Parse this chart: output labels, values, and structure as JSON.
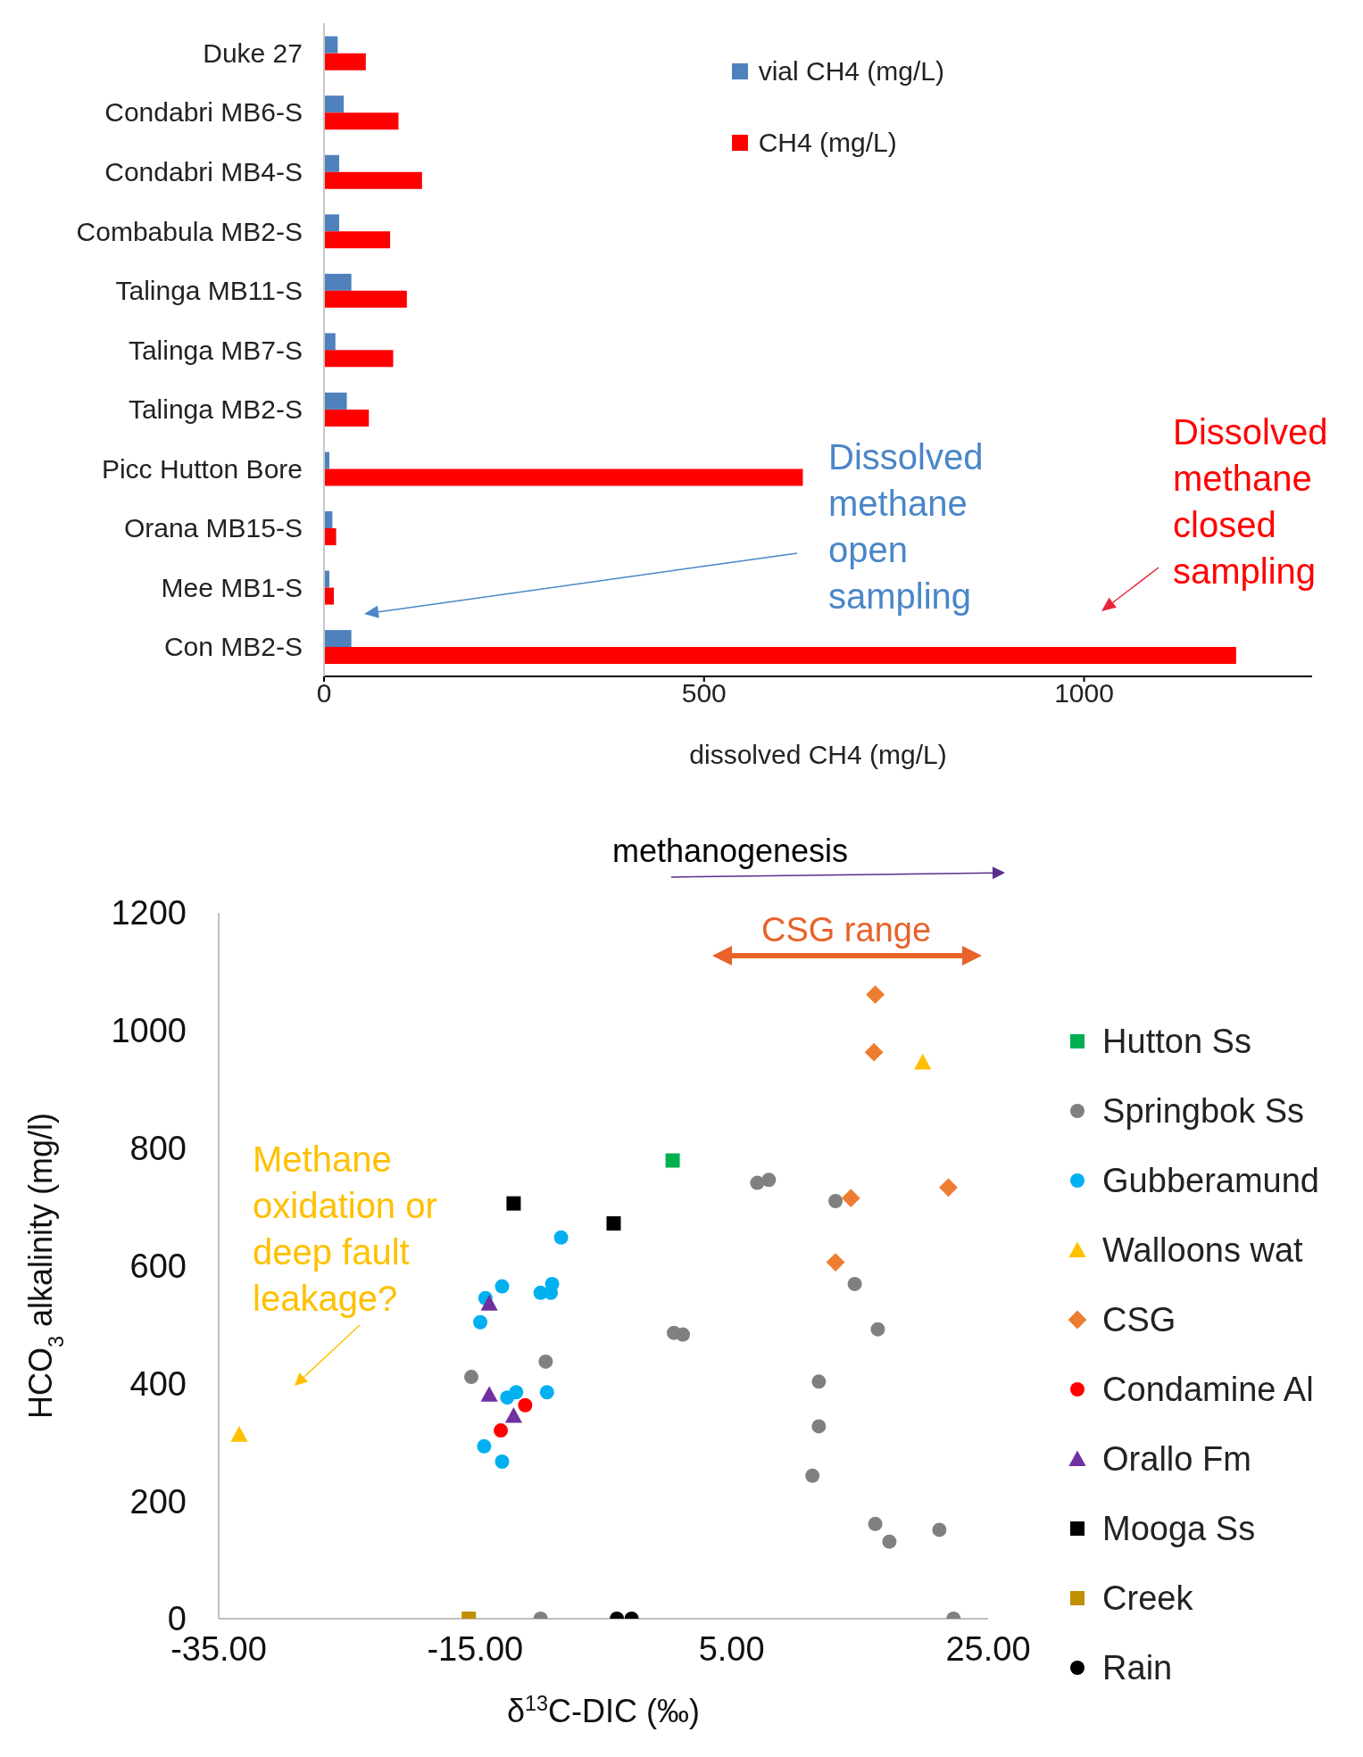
{
  "chart_data": [
    {
      "type": "bar",
      "orientation": "horizontal",
      "xlabel": "dissolved CH4 (mg/L)",
      "categories": [
        "Duke 27",
        "Condabri MB6-S",
        "Condabri MB4-S",
        "Combabula MB2-S",
        "Talinga MB11-S",
        "Talinga MB7-S",
        "Talinga MB2-S",
        "Picc Hutton Bore",
        "Orana MB15-S",
        "Mee MB1-S",
        "Con MB2-S"
      ],
      "series": [
        {
          "name": "vial CH4 (mg/L)",
          "color": "#4f81bd",
          "values": [
            18,
            26,
            20,
            20,
            36,
            15,
            30,
            7,
            11,
            7,
            36
          ]
        },
        {
          "name": "CH4 (mg/L)",
          "color": "#ff0000",
          "values": [
            55,
            98,
            129,
            87,
            109,
            91,
            59,
            630,
            16,
            13,
            1200
          ]
        }
      ],
      "xlim": [
        0,
        1300
      ],
      "xticks": [
        0,
        500,
        1000
      ],
      "legend": "top right",
      "annotations": [
        "Dissolved methane open sampling",
        "Dissolved methane closed sampling"
      ]
    },
    {
      "type": "scatter",
      "xlabel": "δ$^{13}$C-DIC (‰)",
      "ylabel": "HCO$_{3}$ alkalinity (mg/l)",
      "xlim": [
        -35,
        25
      ],
      "xticks": [
        {
          "value": -35,
          "label": "-35.00"
        },
        {
          "value": -15,
          "label": "-15.00"
        },
        {
          "value": 5,
          "label": "5.00"
        },
        {
          "value": 25,
          "label": "25.00"
        }
      ],
      "ylim": [
        0,
        1200
      ],
      "yticks": [
        0,
        200,
        400,
        600,
        800,
        1000,
        1200
      ],
      "legend": "right",
      "series": [
        {
          "name": "Hutton Ss",
          "color": "#00b050",
          "marker": "square",
          "x": [
            0.4
          ],
          "values": [
            779
          ]
        },
        {
          "name": "Springbok Ss",
          "color": "#808080",
          "marker": "circle",
          "x": [
            -15.3,
            -9.5,
            -9.9,
            0.5,
            1.2,
            7.0,
            7.9,
            13.1,
            14.6,
            16.4,
            11.8,
            11.8,
            11.3,
            16.2,
            17.3,
            21.2,
            22.3
          ],
          "values": [
            411,
            437,
            0,
            486,
            483,
            741,
            746,
            710,
            569,
            492,
            403,
            327,
            243,
            161,
            131,
            151,
            0
          ]
        },
        {
          "name": "Gubberamund",
          "color": "#00b0f0",
          "marker": "circle",
          "x": [
            -8.3,
            -12.9,
            -14.2,
            -14.6,
            -9.9,
            -9.1,
            -9.0,
            -12.5,
            -11.8,
            -9.4,
            -14.3,
            -12.9
          ],
          "values": [
            648,
            565,
            545,
            504,
            554,
            554,
            569,
            376,
            385,
            385,
            293,
            267
          ]
        },
        {
          "name": "Walloons wat",
          "color": "#ffc000",
          "marker": "triangle",
          "x": [
            -33.4,
            19.9
          ],
          "values": [
            313,
            946
          ]
        },
        {
          "name": "CSG",
          "color": "#ed7d31",
          "marker": "diamond",
          "x": [
            16.2,
            16.1,
            14.3,
            21.9,
            13.1
          ],
          "values": [
            1061,
            963,
            715,
            733,
            606
          ]
        },
        {
          "name": "Condamine Al",
          "color": "#ff0000",
          "marker": "circle",
          "x": [
            -11.1,
            -13.0
          ],
          "values": [
            363,
            320
          ]
        },
        {
          "name": "Orallo Fm",
          "color": "#7030a0",
          "marker": "triangle",
          "x": [
            -13.9,
            -13.9,
            -12.0
          ],
          "values": [
            536,
            381,
            345
          ]
        },
        {
          "name": "Mooga Ss",
          "color": "#000000",
          "marker": "square",
          "x": [
            -12.0,
            -4.2
          ],
          "values": [
            706,
            672
          ]
        },
        {
          "name": "Creek",
          "color": "#bf9000",
          "marker": "square",
          "x": [
            -15.5
          ],
          "values": [
            0
          ]
        },
        {
          "name": "Rain",
          "color": "#000000",
          "marker": "circle",
          "x": [
            -3.95,
            -2.8
          ],
          "values": [
            0,
            0
          ]
        }
      ],
      "annotations": [
        "methanogenesis",
        "CSG range",
        "Methane oxidation or deep fault leakage?"
      ]
    }
  ]
}
